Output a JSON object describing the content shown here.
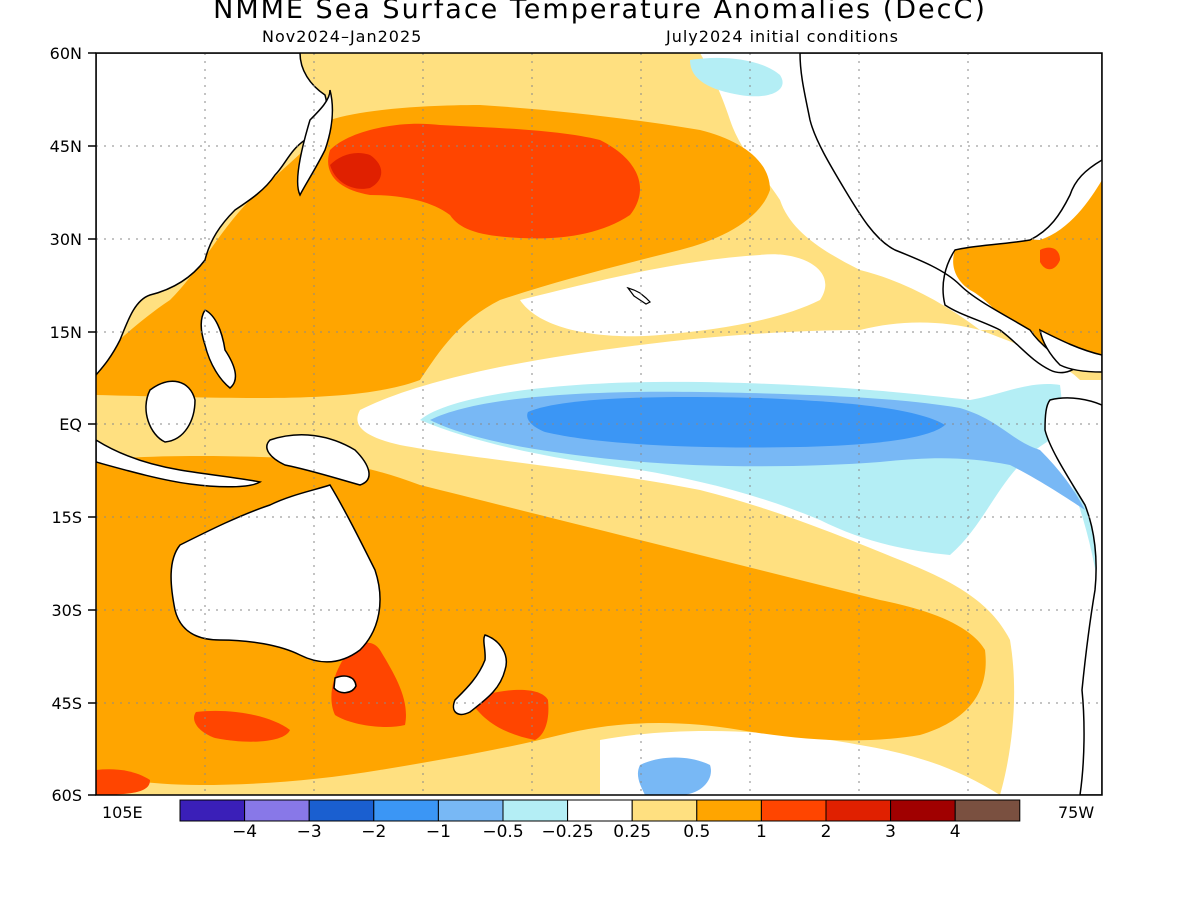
{
  "title": "NMME Sea Surface Temperature Anomalies (DecC)",
  "subtitle_left": "Nov2024–Jan2025",
  "subtitle_right": "July2024 initial conditions",
  "lat_labels": [
    "60N",
    "45N",
    "30N",
    "15N",
    "EQ",
    "15S",
    "30S",
    "45S",
    "60S"
  ],
  "lon_labels": [
    "105E",
    "75W"
  ],
  "colorbar": {
    "colors": [
      "#3a1fb8",
      "#8878e8",
      "#1a5fd0",
      "#3b96f5",
      "#78b8f5",
      "#b4eef5",
      "#ffffff",
      "#ffe080",
      "#ffa500",
      "#ff4500",
      "#e02000",
      "#a00000",
      "#7a5040"
    ],
    "labels": [
      "−4",
      "−3",
      "−2",
      "−1",
      "−0.5",
      "−0.25",
      "0.25",
      "0.5",
      "1",
      "2",
      "3",
      "4"
    ]
  },
  "map": {
    "lat_range": [
      -60,
      60
    ],
    "lon_range_note": "105E to 75W",
    "gridlines": true
  }
}
